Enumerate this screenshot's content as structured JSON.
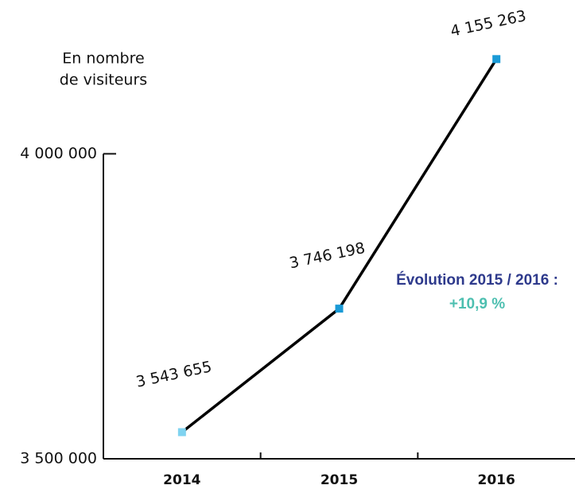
{
  "chart_data": {
    "type": "line",
    "y_label": [
      "En nombre",
      "de visiteurs"
    ],
    "categories": [
      "2014",
      "2015",
      "2016"
    ],
    "series": [
      {
        "name": "Visiteurs",
        "color": "#000000",
        "values": [
          3543655,
          3746198,
          4155263
        ],
        "value_labels": [
          "3 543 655",
          "3 746 198",
          "4 155 263"
        ],
        "marker_colors": [
          "#7fd3f0",
          "#1a9ad6",
          "#1a9ad6"
        ]
      }
    ],
    "ylim": [
      3500000,
      4200000
    ],
    "yticks": [
      {
        "value": 3500000,
        "label": "3 500 000"
      },
      {
        "value": 4000000,
        "label": "4 000 000"
      }
    ],
    "annotations": [
      {
        "text": "Évolution 2015 / 2016 :",
        "color": "#2e3a8c"
      },
      {
        "text": "+10,9 %",
        "color": "#4dbfb0"
      }
    ]
  }
}
